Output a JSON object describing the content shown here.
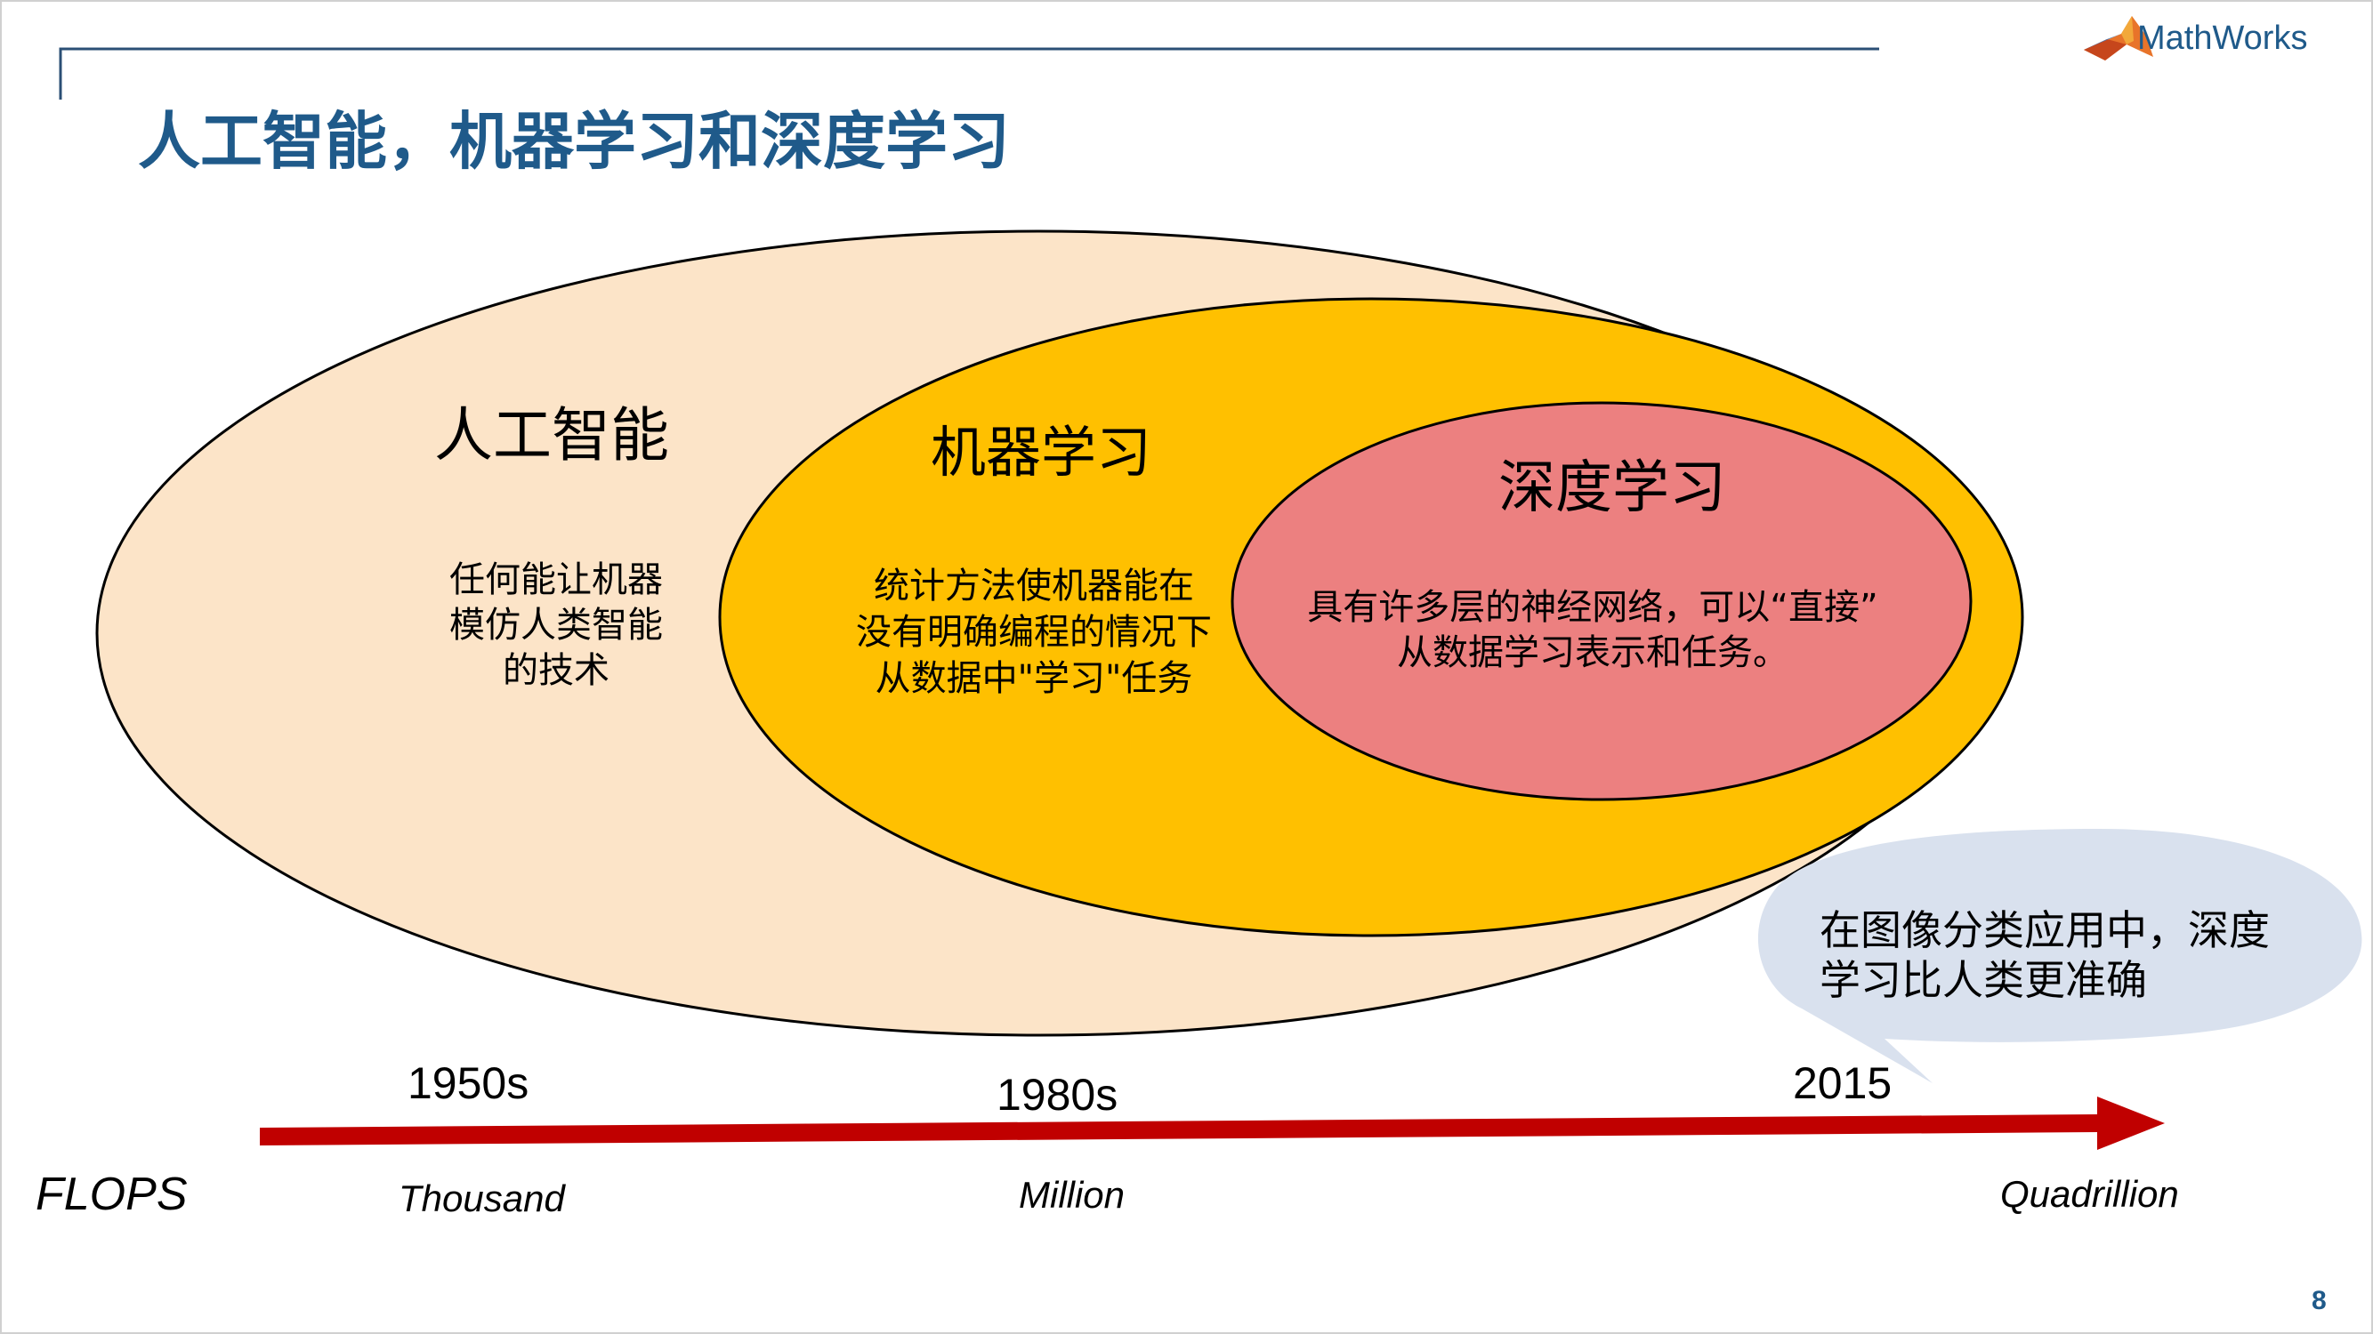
{
  "slide": {
    "title": "人工智能，机器学习和深度学习",
    "page_number": "8",
    "logo_text": "MathWorks"
  },
  "colors": {
    "title": "#1f5a8a",
    "ai_fill": "#fce4c8",
    "ml_fill": "#ffc000",
    "dl_fill": "#ec8080",
    "callout_fill": "#d9e1ee",
    "arrow": "#c00000"
  },
  "diagram": {
    "ai": {
      "title": "人工智能",
      "desc": [
        "任何能让机器",
        "模仿人类智能",
        "的技术"
      ]
    },
    "ml": {
      "title": "机器学习",
      "desc": [
        "统计方法使机器能在",
        "没有明确编程的情况下",
        "从数据中\"学习\"任务"
      ]
    },
    "dl": {
      "title": "深度学习",
      "desc": [
        "具有许多层的神经网络，可以“直接”",
        "从数据学习表示和任务。"
      ]
    }
  },
  "callout": {
    "lines": [
      "在图像分类应用中，深度",
      "学习比人类更准确"
    ]
  },
  "timeline": {
    "years": [
      "1950s",
      "1980s",
      "2015"
    ],
    "flops_label": "FLOPS",
    "flops": [
      "Thousand",
      "Million",
      "Quadrillion"
    ]
  }
}
